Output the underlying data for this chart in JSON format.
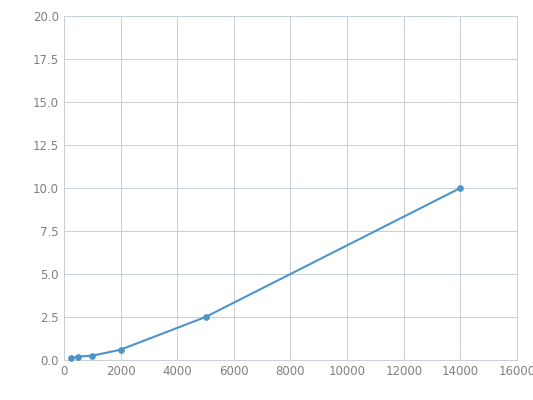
{
  "x": [
    250,
    500,
    1000,
    2000,
    5000,
    14000
  ],
  "y": [
    0.1,
    0.2,
    0.25,
    0.6,
    2.5,
    10.0
  ],
  "line_color": "#4d94c9",
  "marker_color": "#4d94c9",
  "marker_style": "o",
  "marker_size": 4,
  "line_width": 1.5,
  "xlim": [
    0,
    16000
  ],
  "ylim": [
    0,
    20.0
  ],
  "xticks": [
    0,
    2000,
    4000,
    6000,
    8000,
    10000,
    12000,
    14000,
    16000
  ],
  "yticks": [
    0.0,
    2.5,
    5.0,
    7.5,
    10.0,
    12.5,
    15.0,
    17.5,
    20.0
  ],
  "grid_color": "#c8cfd8",
  "background_color": "#ffffff",
  "plot_bg_color": "#ffffff",
  "tick_label_color": "#808080",
  "tick_label_size": 8.5
}
